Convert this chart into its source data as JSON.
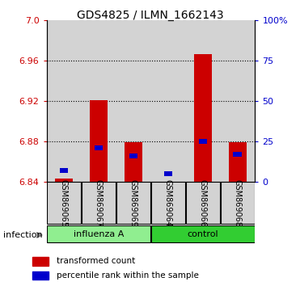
{
  "title": "GDS4825 / ILMN_1662143",
  "samples": [
    "GSM869065",
    "GSM869067",
    "GSM869069",
    "GSM869064",
    "GSM869066",
    "GSM869068"
  ],
  "red_values": [
    6.843,
    6.921,
    6.879,
    6.84,
    6.966,
    6.879
  ],
  "blue_values_pct": [
    7,
    21,
    16,
    5,
    25,
    17
  ],
  "bar_bottom": 6.84,
  "ylim": [
    6.84,
    7.0
  ],
  "left_yticks": [
    6.84,
    6.88,
    6.92,
    6.96,
    7.0
  ],
  "right_yticks": [
    0,
    25,
    50,
    75,
    100
  ],
  "right_yticklabels": [
    "0",
    "25",
    "50",
    "75",
    "100%"
  ],
  "left_color": "#CC0000",
  "right_color": "#0000CC",
  "bar_width": 0.5,
  "col_bg": "#d3d3d3",
  "group1_color": "#90EE90",
  "group2_color": "#32CD32",
  "legend_red": "transformed count",
  "legend_blue": "percentile rank within the sample"
}
